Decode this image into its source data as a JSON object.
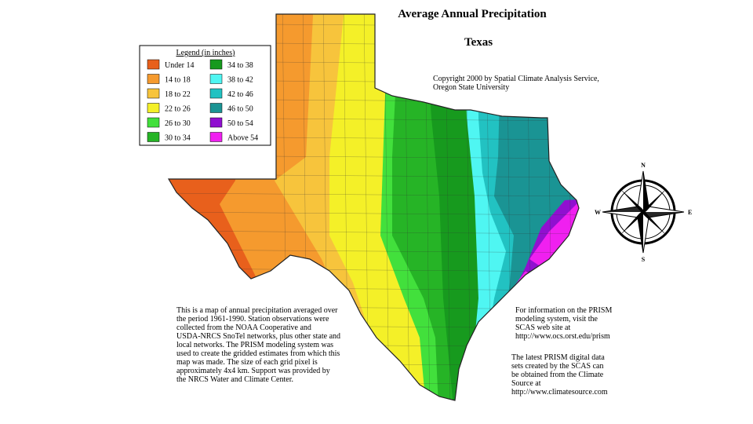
{
  "header": {
    "title": "Average Annual Precipitation",
    "subtitle": "Texas",
    "copyright": [
      "Copyright 2000 by Spatial Climate Analysis Service,",
      "Oregon State University"
    ]
  },
  "legend": {
    "title": "Legend (in inches)",
    "items": [
      {
        "label": "Under 14",
        "color": "#e8601c"
      },
      {
        "label": "14 to 18",
        "color": "#f59a2e"
      },
      {
        "label": "18 to 22",
        "color": "#f7c43c"
      },
      {
        "label": "22 to 26",
        "color": "#f4f028"
      },
      {
        "label": "26 to 30",
        "color": "#42e03c"
      },
      {
        "label": "30 to 34",
        "color": "#26b426"
      },
      {
        "label": "34 to 38",
        "color": "#179a1e"
      },
      {
        "label": "38 to 42",
        "color": "#4ff6f2"
      },
      {
        "label": "42 to 46",
        "color": "#22c2c2"
      },
      {
        "label": "46 to 50",
        "color": "#1a9494"
      },
      {
        "label": "50 to 54",
        "color": "#9010d0"
      },
      {
        "label": "Above 54",
        "color": "#f020f0"
      }
    ]
  },
  "description": [
    "This is a map of annual precipitation averaged over",
    "the period 1961-1990. Station observations were",
    "collected from the NOAA Cooperative and",
    "USDA-NRCS SnoTel networks, plus other state and",
    "local networks.  The PRISM modeling system was",
    "used to create the gridded estimates from which this",
    "map was made.  The size of each grid pixel is",
    "approximately 4x4 km.  Support was provided by",
    "the NRCS Water and Climate Center."
  ],
  "info": [
    "For information on the PRISM",
    "modeling system, visit the",
    "SCAS web site at",
    " http://www.ocs.orst.edu/prism"
  ],
  "source": [
    "The latest PRISM digital data",
    "sets created by the SCAS can",
    "be obtained from the Climate",
    "Source at",
    "http://www.climatesource.com"
  ],
  "compass": {
    "n": "N",
    "e": "E",
    "s": "S",
    "w": "W"
  }
}
